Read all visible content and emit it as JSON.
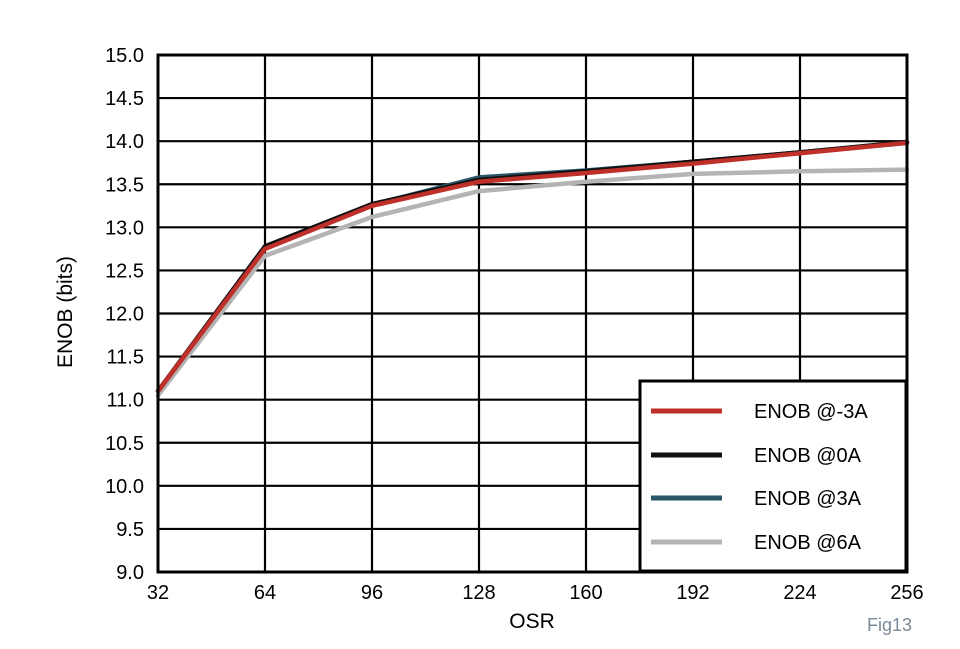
{
  "chart_data": {
    "type": "line",
    "xlabel": "OSR",
    "ylabel": "ENOB (bits)",
    "figure_label": "Fig13",
    "xlim": [
      32,
      256
    ],
    "ylim": [
      9.0,
      15.0
    ],
    "x_ticks": [
      32,
      64,
      96,
      128,
      160,
      192,
      224,
      256
    ],
    "y_ticks": [
      "9.0",
      "9.5",
      "10.0",
      "10.5",
      "11.0",
      "11.5",
      "12.0",
      "12.5",
      "13.0",
      "13.5",
      "14.0",
      "14.5",
      "15.0"
    ],
    "grid": true,
    "legend_position": "bottom-right",
    "x": [
      32,
      64,
      96,
      128,
      160,
      192,
      224,
      256
    ],
    "series": [
      {
        "name": "ENOB @-3A",
        "color": "#c0302a",
        "values": [
          11.1,
          12.75,
          13.25,
          13.53,
          13.63,
          13.74,
          13.86,
          13.98
        ]
      },
      {
        "name": "ENOB @0A",
        "color": "#111111",
        "values": [
          11.1,
          12.78,
          13.27,
          13.55,
          13.65,
          13.76,
          13.87,
          13.99
        ]
      },
      {
        "name": "ENOB @3A",
        "color": "#2a5668",
        "values": [
          11.1,
          12.76,
          13.26,
          13.58,
          13.66,
          13.76,
          13.87,
          13.98
        ]
      },
      {
        "name": "ENOB @6A",
        "color": "#b4b4b4",
        "values": [
          11.05,
          12.67,
          13.12,
          13.42,
          13.53,
          13.62,
          13.65,
          13.67
        ]
      }
    ]
  }
}
